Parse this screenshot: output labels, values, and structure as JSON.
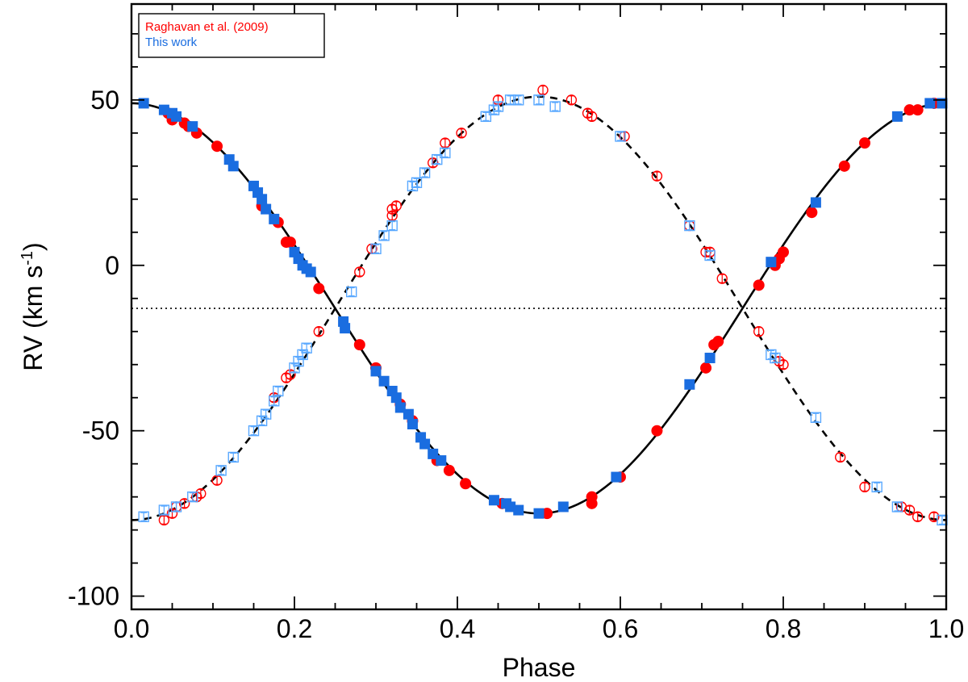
{
  "chart_data": {
    "type": "scatter",
    "xlabel": "Phase",
    "ylabel_main": "RV (km s",
    "ylabel_sup": "-1",
    "ylabel_close": ")",
    "xlim": [
      0.0,
      1.0
    ],
    "ylim": [
      -104,
      79
    ],
    "xticks": [
      0.0,
      0.2,
      0.4,
      0.6,
      0.8,
      1.0
    ],
    "xtick_labels": [
      "0.0",
      "0.2",
      "0.4",
      "0.6",
      "0.8",
      "1.0"
    ],
    "yticks": [
      -100,
      -50,
      0,
      50
    ],
    "ytick_labels": [
      "-100",
      "-50",
      "0",
      "50"
    ],
    "systemic_velocity": -13,
    "legend": {
      "placement": "top-left",
      "entries": [
        {
          "label": "Raghavan et al. (2009)",
          "color": "#ff0000"
        },
        {
          "label": "This work",
          "color": "#1a6de0"
        }
      ]
    },
    "model_curves": [
      {
        "name": "primary fit",
        "style": "solid",
        "gamma": -13,
        "K": 62,
        "phase_sign": 1
      },
      {
        "name": "secondary fit",
        "style": "dashed",
        "gamma": -13,
        "K": 64,
        "phase_sign": -1
      }
    ],
    "series": [
      {
        "name": "Raghavan et al. (2009) primary",
        "marker": "filled-circle",
        "color": "#ff0000",
        "points": [
          [
            0.045,
            46
          ],
          [
            0.05,
            44
          ],
          [
            0.065,
            43
          ],
          [
            0.07,
            42
          ],
          [
            0.08,
            40
          ],
          [
            0.105,
            36
          ],
          [
            0.16,
            18
          ],
          [
            0.18,
            13
          ],
          [
            0.19,
            7
          ],
          [
            0.195,
            7
          ],
          [
            0.23,
            -7
          ],
          [
            0.28,
            -24
          ],
          [
            0.3,
            -31
          ],
          [
            0.33,
            -42
          ],
          [
            0.345,
            -47
          ],
          [
            0.375,
            -59
          ],
          [
            0.39,
            -62
          ],
          [
            0.41,
            -66
          ],
          [
            0.455,
            -72
          ],
          [
            0.51,
            -75
          ],
          [
            0.565,
            -70
          ],
          [
            0.565,
            -72
          ],
          [
            0.6,
            -64
          ],
          [
            0.645,
            -50
          ],
          [
            0.705,
            -31
          ],
          [
            0.715,
            -24
          ],
          [
            0.72,
            -23
          ],
          [
            0.77,
            -6
          ],
          [
            0.79,
            0
          ],
          [
            0.795,
            2
          ],
          [
            0.8,
            4
          ],
          [
            0.835,
            16
          ],
          [
            0.875,
            30
          ],
          [
            0.9,
            37
          ],
          [
            0.955,
            47
          ],
          [
            0.965,
            47
          ],
          [
            0.985,
            49
          ]
        ]
      },
      {
        "name": "This work primary",
        "marker": "filled-square",
        "color": "#1a6de0",
        "points": [
          [
            0.015,
            49
          ],
          [
            0.04,
            47
          ],
          [
            0.05,
            46
          ],
          [
            0.055,
            45
          ],
          [
            0.075,
            42
          ],
          [
            0.12,
            32
          ],
          [
            0.125,
            30
          ],
          [
            0.15,
            24
          ],
          [
            0.155,
            22
          ],
          [
            0.16,
            20
          ],
          [
            0.165,
            17
          ],
          [
            0.175,
            14
          ],
          [
            0.2,
            4
          ],
          [
            0.205,
            2
          ],
          [
            0.21,
            0
          ],
          [
            0.215,
            -1
          ],
          [
            0.22,
            -2
          ],
          [
            0.26,
            -17
          ],
          [
            0.262,
            -19
          ],
          [
            0.3,
            -32
          ],
          [
            0.31,
            -35
          ],
          [
            0.32,
            -38
          ],
          [
            0.325,
            -40
          ],
          [
            0.33,
            -43
          ],
          [
            0.34,
            -45
          ],
          [
            0.345,
            -48
          ],
          [
            0.355,
            -52
          ],
          [
            0.36,
            -54
          ],
          [
            0.37,
            -57
          ],
          [
            0.38,
            -59
          ],
          [
            0.445,
            -71
          ],
          [
            0.46,
            -72
          ],
          [
            0.465,
            -73
          ],
          [
            0.475,
            -74
          ],
          [
            0.5,
            -75
          ],
          [
            0.53,
            -73
          ],
          [
            0.595,
            -64
          ],
          [
            0.685,
            -36
          ],
          [
            0.71,
            -28
          ],
          [
            0.785,
            1
          ],
          [
            0.84,
            19
          ],
          [
            0.94,
            45
          ],
          [
            0.98,
            49
          ],
          [
            0.995,
            49
          ]
        ]
      },
      {
        "name": "Raghavan et al. (2009) secondary",
        "marker": "open-circle",
        "color": "#ff0000",
        "points": [
          [
            0.04,
            -77
          ],
          [
            0.05,
            -75
          ],
          [
            0.055,
            -73
          ],
          [
            0.065,
            -72
          ],
          [
            0.08,
            -70
          ],
          [
            0.085,
            -69
          ],
          [
            0.105,
            -65
          ],
          [
            0.175,
            -40
          ],
          [
            0.19,
            -34
          ],
          [
            0.195,
            -33
          ],
          [
            0.23,
            -20
          ],
          [
            0.28,
            -2
          ],
          [
            0.295,
            5
          ],
          [
            0.32,
            15
          ],
          [
            0.32,
            17
          ],
          [
            0.325,
            18
          ],
          [
            0.37,
            31
          ],
          [
            0.385,
            37
          ],
          [
            0.405,
            40
          ],
          [
            0.45,
            50
          ],
          [
            0.505,
            53
          ],
          [
            0.54,
            50
          ],
          [
            0.56,
            46
          ],
          [
            0.565,
            45
          ],
          [
            0.605,
            39
          ],
          [
            0.645,
            27
          ],
          [
            0.685,
            12
          ],
          [
            0.705,
            4
          ],
          [
            0.71,
            4
          ],
          [
            0.725,
            -4
          ],
          [
            0.77,
            -20
          ],
          [
            0.795,
            -29
          ],
          [
            0.8,
            -30
          ],
          [
            0.87,
            -58
          ],
          [
            0.9,
            -67
          ],
          [
            0.945,
            -73
          ],
          [
            0.955,
            -74
          ],
          [
            0.965,
            -76
          ],
          [
            0.985,
            -76
          ]
        ]
      },
      {
        "name": "This work secondary",
        "marker": "open-square",
        "color": "#59a8ff",
        "points": [
          [
            0.015,
            -76
          ],
          [
            0.04,
            -74
          ],
          [
            0.055,
            -73
          ],
          [
            0.075,
            -70
          ],
          [
            0.11,
            -62
          ],
          [
            0.125,
            -58
          ],
          [
            0.15,
            -50
          ],
          [
            0.16,
            -47
          ],
          [
            0.165,
            -45
          ],
          [
            0.175,
            -41
          ],
          [
            0.18,
            -38
          ],
          [
            0.2,
            -31
          ],
          [
            0.205,
            -29
          ],
          [
            0.21,
            -27
          ],
          [
            0.215,
            -25
          ],
          [
            0.27,
            -8
          ],
          [
            0.3,
            5
          ],
          [
            0.31,
            9
          ],
          [
            0.32,
            12
          ],
          [
            0.345,
            24
          ],
          [
            0.35,
            25
          ],
          [
            0.36,
            28
          ],
          [
            0.375,
            32
          ],
          [
            0.385,
            34
          ],
          [
            0.435,
            45
          ],
          [
            0.445,
            47
          ],
          [
            0.45,
            48
          ],
          [
            0.465,
            50
          ],
          [
            0.475,
            50
          ],
          [
            0.5,
            50
          ],
          [
            0.52,
            48
          ],
          [
            0.6,
            39
          ],
          [
            0.685,
            12
          ],
          [
            0.71,
            3
          ],
          [
            0.785,
            -27
          ],
          [
            0.79,
            -28
          ],
          [
            0.84,
            -46
          ],
          [
            0.915,
            -67
          ],
          [
            0.94,
            -73
          ],
          [
            0.995,
            -77
          ]
        ]
      }
    ]
  }
}
